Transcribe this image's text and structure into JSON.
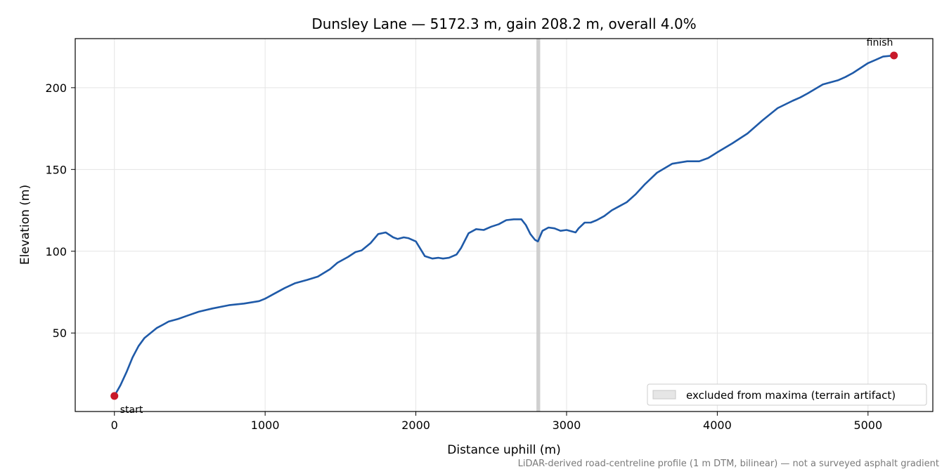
{
  "chart_data": {
    "type": "line",
    "title": "Dunsley Lane — 5172.3 m, gain 208.2 m, overall 4.0%",
    "xlabel": "Distance uphill (m)",
    "ylabel": "Elevation (m)",
    "xlim": [
      -260,
      5430
    ],
    "ylim": [
      2,
      230
    ],
    "xticks": [
      0,
      1000,
      2000,
      3000,
      4000,
      5000
    ],
    "yticks": [
      50,
      100,
      150,
      200
    ],
    "grid": true,
    "footnote": "LiDAR-derived road-centreline profile (1 m DTM, bilinear) — not a surveyed asphalt gradient",
    "colors": {
      "line": "#1f5aa8",
      "marker": "#c8192a",
      "excluded": "#c8c8c8",
      "grid": "#e4e4e4"
    },
    "series": [
      {
        "x": [
          0,
          40,
          80,
          120,
          160,
          200,
          240,
          280,
          320,
          360,
          420,
          480,
          560,
          650,
          760,
          860,
          960,
          1000,
          1060,
          1130,
          1200,
          1280,
          1350,
          1430,
          1480,
          1550,
          1600,
          1640,
          1700,
          1750,
          1800,
          1850,
          1880,
          1920,
          1950,
          2000,
          2060,
          2110,
          2150,
          2180,
          2220,
          2270,
          2300,
          2350,
          2400,
          2450,
          2500,
          2550,
          2600,
          2650,
          2700,
          2730,
          2760,
          2790,
          2810,
          2840,
          2880,
          2920,
          2960,
          3000,
          3060,
          3080,
          3120,
          3160,
          3200,
          3250,
          3300,
          3350,
          3400,
          3460,
          3520,
          3600,
          3700,
          3800,
          3880,
          3940,
          4000,
          4100,
          4200,
          4300,
          4400,
          4500,
          4550,
          4600,
          4700,
          4800,
          4850,
          4900,
          4950,
          5000,
          5050,
          5100,
          5172
        ],
        "y": [
          11.5,
          18,
          26,
          35,
          42,
          47,
          50,
          53,
          55,
          57,
          58.5,
          60.5,
          63,
          65,
          67,
          68,
          69.5,
          71,
          74,
          77.5,
          80.5,
          82.5,
          84.5,
          89,
          93,
          96.5,
          99.5,
          100.5,
          105,
          110.5,
          111.5,
          108.5,
          107.5,
          108.5,
          108,
          106,
          97,
          95.5,
          96,
          95.5,
          96,
          98,
          102,
          111,
          113.5,
          113,
          115,
          116.5,
          119,
          119.5,
          119.5,
          116,
          110.5,
          107,
          106,
          112.5,
          114.5,
          114,
          112.5,
          113,
          111.5,
          114,
          117.5,
          117.5,
          119,
          121.5,
          125,
          127.5,
          130,
          135,
          141,
          148,
          153.5,
          155,
          155,
          157,
          160.5,
          166,
          172,
          180,
          187.5,
          192,
          194,
          196.5,
          202,
          204.5,
          206.5,
          209,
          212,
          215,
          217,
          219,
          219.7
        ]
      }
    ],
    "points": [
      {
        "label": "start",
        "x": 0,
        "y": 11.5
      },
      {
        "label": "finish",
        "x": 5172,
        "y": 219.7
      }
    ],
    "excluded_region": {
      "x": [
        2800,
        2825
      ],
      "legend_label": "excluded from maxima (terrain artifact)",
      "legend_position": "lower right"
    }
  }
}
